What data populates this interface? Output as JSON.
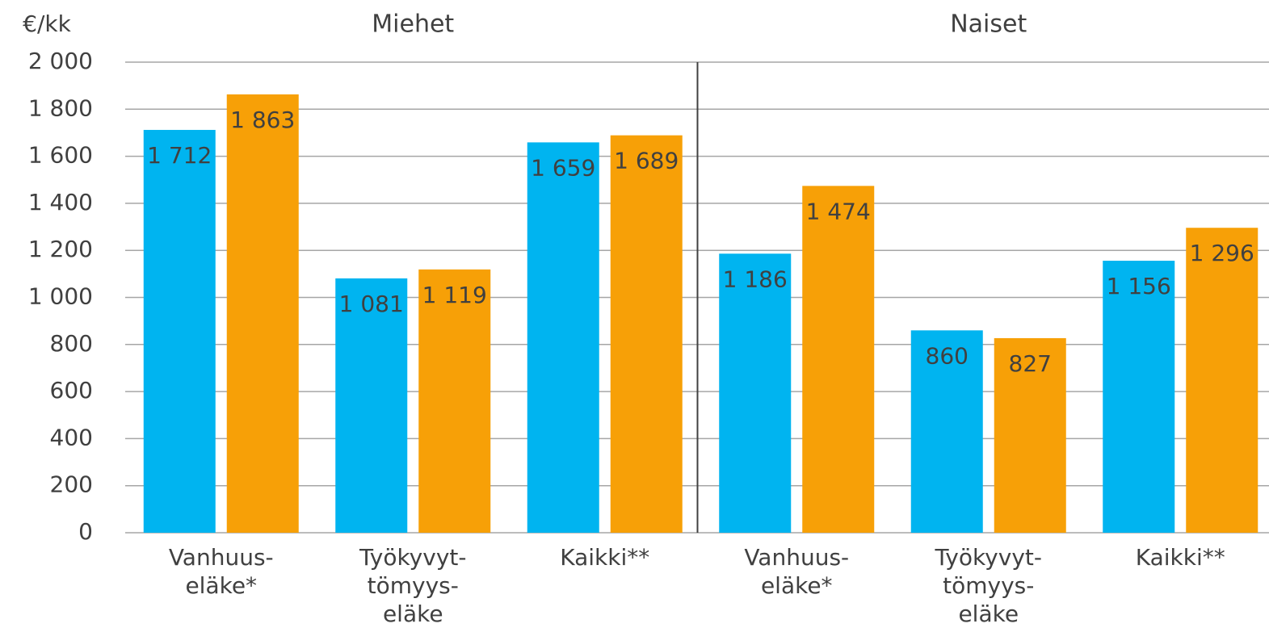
{
  "chart_data": {
    "type": "bar",
    "y_label": "€/kk",
    "groups": [
      "Miehet",
      "Naiset"
    ],
    "categories": [
      [
        "Vanhuus-",
        "eläke*"
      ],
      [
        "Työkyvyt-",
        "tömyys-",
        "eläke"
      ],
      [
        "Kaikki**"
      ],
      [
        "Vanhuus-",
        "eläke*"
      ],
      [
        "Työkyvyt-",
        "tömyys-",
        "eläke"
      ],
      [
        "Kaikki**"
      ]
    ],
    "series": [
      {
        "color": "#00b4f0",
        "values": [
          1712,
          1081,
          1659,
          1186,
          860,
          1156
        ],
        "value_labels": [
          "1 712",
          "1 081",
          "1 659",
          "1 186",
          "860",
          "1 156"
        ]
      },
      {
        "color": "#f7a007",
        "values": [
          1863,
          1119,
          1689,
          1474,
          827,
          1296
        ],
        "value_labels": [
          "1 863",
          "1 119",
          "1 689",
          "1 474",
          "827",
          "1 296"
        ]
      }
    ],
    "ylim": [
      0,
      2000
    ],
    "yticks": [
      0,
      200,
      400,
      600,
      800,
      {
        "value": 1000,
        "label": "1 000"
      },
      {
        "value": 1200,
        "label": "1 200"
      },
      {
        "value": 1400,
        "label": "1 400"
      },
      {
        "value": 1600,
        "label": "1 600"
      },
      {
        "value": 1800,
        "label": "1 800"
      },
      {
        "value": 2000,
        "label": "2 000"
      }
    ],
    "grid": true
  }
}
